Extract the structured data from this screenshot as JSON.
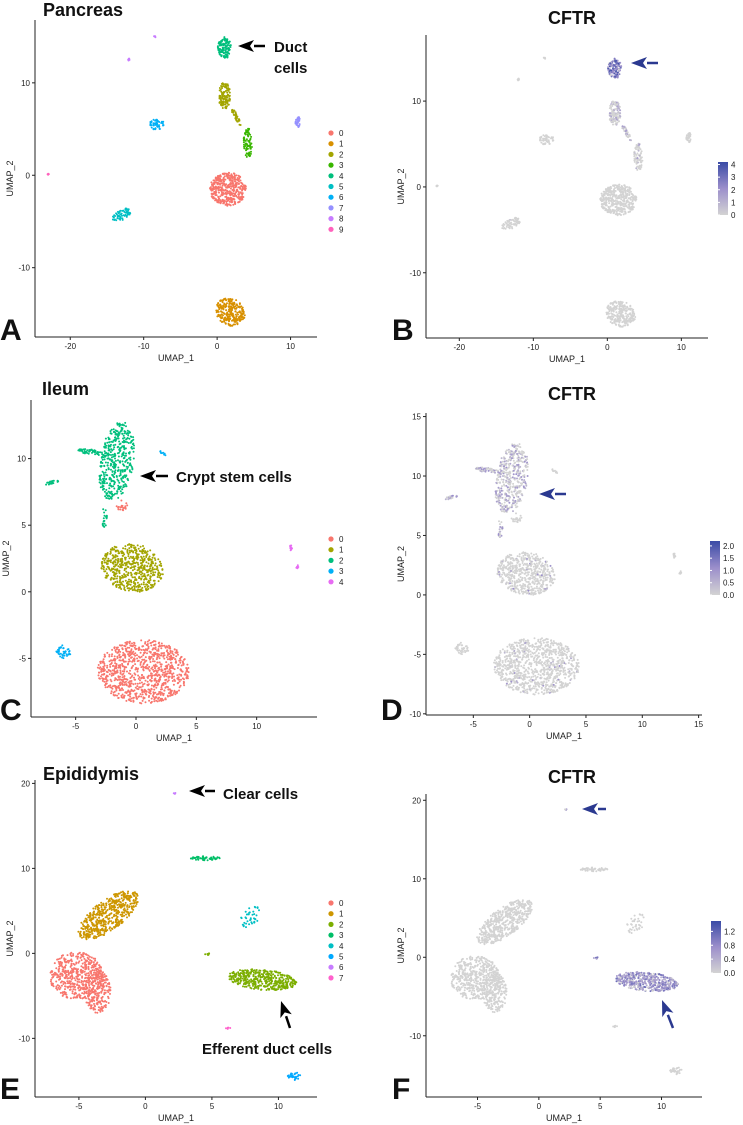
{
  "chart_data": [
    {
      "panel": "A",
      "type": "scatter",
      "title": "Pancreas",
      "xlabel": "UMAP_1",
      "ylabel": "UMAP_2",
      "xlim": [
        -24.8,
        13.6
      ],
      "ylim": [
        -17.5,
        16.8
      ],
      "xticks": [
        -20,
        -10,
        0,
        10
      ],
      "yticks": [
        -10,
        0,
        10
      ],
      "legend": {
        "type": "categorical",
        "placement": "right",
        "entries": [
          {
            "label": "0",
            "color": "#F8766D"
          },
          {
            "label": "1",
            "color": "#D89000"
          },
          {
            "label": "2",
            "color": "#A3A500"
          },
          {
            "label": "3",
            "color": "#39B600"
          },
          {
            "label": "4",
            "color": "#00BF7D"
          },
          {
            "label": "5",
            "color": "#00BFC4"
          },
          {
            "label": "6",
            "color": "#00B0F6"
          },
          {
            "label": "7",
            "color": "#9590FF"
          },
          {
            "label": "8",
            "color": "#C77CFF"
          },
          {
            "label": "9",
            "color": "#FF62BC"
          }
        ]
      },
      "clusters": [
        {
          "cluster": 0,
          "x": 1.5,
          "y": -1.5,
          "rx": 2.5,
          "ry": 1.8,
          "angle": 0,
          "n": 420
        },
        {
          "cluster": 1,
          "x": 1.8,
          "y": -14.8,
          "rx": 2.0,
          "ry": 1.5,
          "angle": -15,
          "n": 260
        },
        {
          "cluster": 2,
          "x": 1.0,
          "y": 8.6,
          "rx": 0.8,
          "ry": 1.5,
          "angle": 0,
          "n": 120
        },
        {
          "cluster": 2,
          "x": 2.6,
          "y": 6.3,
          "rx": 1.1,
          "ry": 0.25,
          "angle": -55,
          "n": 35
        },
        {
          "cluster": 3,
          "x": 4.2,
          "y": 3.5,
          "rx": 0.6,
          "ry": 1.6,
          "angle": 0,
          "n": 80
        },
        {
          "cluster": 4,
          "x": 1.0,
          "y": 13.8,
          "rx": 0.9,
          "ry": 1.2,
          "angle": 0,
          "n": 120
        },
        {
          "cluster": 5,
          "x": -13.0,
          "y": -4.3,
          "rx": 1.3,
          "ry": 0.6,
          "angle": 20,
          "n": 60
        },
        {
          "cluster": 6,
          "x": -8.2,
          "y": 5.5,
          "rx": 1.0,
          "ry": 0.6,
          "angle": 0,
          "n": 50
        },
        {
          "cluster": 7,
          "x": 11.0,
          "y": 5.8,
          "rx": 0.4,
          "ry": 0.6,
          "angle": 0,
          "n": 30
        },
        {
          "cluster": 8,
          "x": -12.0,
          "y": 12.5,
          "rx": 0.2,
          "ry": 0.15,
          "angle": 0,
          "n": 6
        },
        {
          "cluster": 8,
          "x": -8.5,
          "y": 15.0,
          "rx": 0.15,
          "ry": 0.1,
          "angle": 0,
          "n": 4
        },
        {
          "cluster": 9,
          "x": -23.0,
          "y": 0.0,
          "rx": 0.2,
          "ry": 0.2,
          "angle": 0,
          "n": 4
        }
      ],
      "annotation": {
        "lines": [
          "Duct",
          "cells"
        ],
        "arrow_color": "#000000"
      }
    },
    {
      "panel": "B",
      "type": "scatter",
      "title": "CFTR",
      "xlabel": "UMAP_1",
      "ylabel": "UMAP_2",
      "xlim": [
        -24.5,
        13.6
      ],
      "ylim": [
        -17.6,
        17.7
      ],
      "xticks": [
        -20,
        -10,
        0,
        10
      ],
      "yticks": [
        -10,
        0,
        10
      ],
      "legend": {
        "type": "colorbar",
        "placement": "right",
        "min": 0,
        "max": 4.2,
        "ticks": [
          "0",
          "1",
          "2",
          "3",
          "4"
        ],
        "tick_values": [
          0,
          1,
          2,
          3,
          4
        ],
        "low_color": "#D3D3D3",
        "mid_color": "#9C8FCB",
        "high_color": "#3A4BA6"
      },
      "source_panel": "A",
      "expression": {
        "4": {
          "frac": 0.95,
          "mean": 3.0
        },
        "2": {
          "frac": 0.35,
          "mean": 1.2
        },
        "3": {
          "frac": 0.1,
          "mean": 1.5
        },
        "5": {
          "frac": 0.02,
          "mean": 1.0
        }
      },
      "annotation": {
        "lines": [],
        "arrow_color": "#2B3990"
      }
    },
    {
      "panel": "C",
      "type": "scatter",
      "title": "Ileum",
      "xlabel": "UMAP_1",
      "ylabel": "UMAP_2",
      "xlim": [
        -8.7,
        15.0
      ],
      "ylim": [
        -9.4,
        14.4
      ],
      "xticks": [
        -5,
        0,
        5,
        10
      ],
      "yticks": [
        -5,
        0,
        5,
        10
      ],
      "legend": {
        "type": "categorical",
        "placement": "right",
        "entries": [
          {
            "label": "0",
            "color": "#F8766D"
          },
          {
            "label": "1",
            "color": "#A3A500"
          },
          {
            "label": "2",
            "color": "#00BF7D"
          },
          {
            "label": "3",
            "color": "#00B0F6"
          },
          {
            "label": "4",
            "color": "#E76BF3"
          }
        ]
      },
      "clusters": [
        {
          "cluster": 0,
          "x": 0.6,
          "y": -6.0,
          "rx": 3.8,
          "ry": 2.4,
          "angle": 0,
          "n": 950
        },
        {
          "cluster": 0,
          "x": -1.2,
          "y": 6.5,
          "rx": 0.5,
          "ry": 0.4,
          "angle": 0,
          "n": 20
        },
        {
          "cluster": 1,
          "x": -0.3,
          "y": 1.8,
          "rx": 2.6,
          "ry": 1.8,
          "angle": -8,
          "n": 560
        },
        {
          "cluster": 2,
          "x": -1.6,
          "y": 9.8,
          "rx": 1.4,
          "ry": 3.0,
          "angle": -10,
          "n": 420
        },
        {
          "cluster": 2,
          "x": -3.8,
          "y": 10.5,
          "rx": 1.0,
          "ry": 0.2,
          "angle": -8,
          "n": 50
        },
        {
          "cluster": 2,
          "x": -7.0,
          "y": 8.2,
          "rx": 0.6,
          "ry": 0.15,
          "angle": 10,
          "n": 18
        },
        {
          "cluster": 2,
          "x": -2.6,
          "y": 5.5,
          "rx": 0.2,
          "ry": 0.9,
          "angle": 0,
          "n": 20
        },
        {
          "cluster": 3,
          "x": -6.0,
          "y": -4.5,
          "rx": 0.6,
          "ry": 0.5,
          "angle": 0,
          "n": 40
        },
        {
          "cluster": 3,
          "x": 2.2,
          "y": 10.4,
          "rx": 0.3,
          "ry": 0.1,
          "angle": -30,
          "n": 8
        },
        {
          "cluster": 4,
          "x": 12.8,
          "y": 3.3,
          "rx": 0.15,
          "ry": 0.2,
          "angle": 0,
          "n": 8
        },
        {
          "cluster": 4,
          "x": 13.4,
          "y": 1.9,
          "rx": 0.15,
          "ry": 0.15,
          "angle": 0,
          "n": 8
        }
      ],
      "annotation": {
        "lines": [
          "Crypt stem cells"
        ],
        "arrow_color": "#000000"
      }
    },
    {
      "panel": "D",
      "type": "scatter",
      "title": "CFTR",
      "xlabel": "UMAP_1",
      "ylabel": "UMAP_2",
      "xlim": [
        -9.2,
        15.3
      ],
      "ylim": [
        -10.1,
        15.3
      ],
      "xticks": [
        -5,
        0,
        5,
        10,
        15
      ],
      "yticks": [
        -10,
        -5,
        0,
        5,
        10,
        15
      ],
      "legend": {
        "type": "colorbar",
        "placement": "right",
        "min": 0,
        "max": 2.2,
        "ticks": [
          "0.0",
          "0.5",
          "1.0",
          "1.5",
          "2.0"
        ],
        "tick_values": [
          0,
          0.5,
          1,
          1.5,
          2
        ],
        "low_color": "#D3D3D3",
        "mid_color": "#9C8FCB",
        "high_color": "#3A4BA6"
      },
      "source_panel": "C",
      "expression": {
        "2": {
          "frac": 0.45,
          "mean": 0.8
        },
        "0": {
          "frac": 0.05,
          "mean": 0.8
        },
        "1": {
          "frac": 0.03,
          "mean": 0.8
        }
      },
      "annotation": {
        "lines": [],
        "arrow_color": "#2B3990"
      }
    },
    {
      "panel": "E",
      "type": "scatter",
      "title": "Epididymis",
      "xlabel": "UMAP_1",
      "ylabel": "UMAP_2",
      "xlim": [
        -8.3,
        12.9
      ],
      "ylim": [
        -16.9,
        20.4
      ],
      "xticks": [
        -5,
        0,
        5,
        10
      ],
      "yticks": [
        -10,
        0,
        10,
        20
      ],
      "legend": {
        "type": "categorical",
        "placement": "right",
        "entries": [
          {
            "label": "0",
            "color": "#F8766D"
          },
          {
            "label": "1",
            "color": "#CD9600"
          },
          {
            "label": "2",
            "color": "#7CAE00"
          },
          {
            "label": "3",
            "color": "#00BE67"
          },
          {
            "label": "4",
            "color": "#00BFC4"
          },
          {
            "label": "5",
            "color": "#00A9FF"
          },
          {
            "label": "6",
            "color": "#C77CFF"
          },
          {
            "label": "7",
            "color": "#FF61CC"
          }
        ]
      },
      "clusters": [
        {
          "cluster": 0,
          "x": -5.2,
          "y": -2.6,
          "rx": 2.0,
          "ry": 2.8,
          "angle": 0,
          "n": 480
        },
        {
          "cluster": 0,
          "x": -3.6,
          "y": -4.5,
          "rx": 1.0,
          "ry": 2.5,
          "angle": 0,
          "n": 220
        },
        {
          "cluster": 1,
          "x": -2.8,
          "y": 4.5,
          "rx": 1.4,
          "ry": 3.4,
          "angle": -35,
          "n": 520
        },
        {
          "cluster": 2,
          "x": 8.8,
          "y": -3.1,
          "rx": 2.6,
          "ry": 1.2,
          "angle": -10,
          "n": 420
        },
        {
          "cluster": 2,
          "x": 4.7,
          "y": -0.1,
          "rx": 0.4,
          "ry": 0.1,
          "angle": 0,
          "n": 6
        },
        {
          "cluster": 3,
          "x": 4.5,
          "y": 11.2,
          "rx": 1.1,
          "ry": 0.25,
          "angle": 0,
          "n": 55
        },
        {
          "cluster": 4,
          "x": 7.9,
          "y": 4.3,
          "rx": 0.7,
          "ry": 1.3,
          "angle": -20,
          "n": 40
        },
        {
          "cluster": 5,
          "x": 11.2,
          "y": -14.5,
          "rx": 0.5,
          "ry": 0.5,
          "angle": 0,
          "n": 30
        },
        {
          "cluster": 6,
          "x": 2.2,
          "y": 18.8,
          "rx": 0.1,
          "ry": 0.1,
          "angle": 0,
          "n": 4
        },
        {
          "cluster": 7,
          "x": 6.2,
          "y": -8.8,
          "rx": 0.2,
          "ry": 0.1,
          "angle": 20,
          "n": 5
        }
      ],
      "annotation": {
        "lines": [
          "Clear cells",
          "Efferent duct cells"
        ],
        "arrow_color": "#000000"
      }
    },
    {
      "panel": "F",
      "type": "scatter",
      "title": "CFTR",
      "xlabel": "UMAP_1",
      "ylabel": "UMAP_2",
      "xlim": [
        -9.2,
        13.3
      ],
      "ylim": [
        -17.8,
        20.8
      ],
      "xticks": [
        -5,
        0,
        5,
        10
      ],
      "yticks": [
        -10,
        0,
        10,
        20
      ],
      "legend": {
        "type": "colorbar",
        "placement": "right",
        "min": 0,
        "max": 1.5,
        "ticks": [
          "0.0",
          "0.4",
          "0.8",
          "1.2"
        ],
        "tick_values": [
          0,
          0.4,
          0.8,
          1.2
        ],
        "low_color": "#D3D3D3",
        "mid_color": "#9C8FCB",
        "high_color": "#3A4BA6"
      },
      "source_panel": "E",
      "expression": {
        "2": {
          "frac": 0.9,
          "mean": 0.8
        },
        "6": {
          "frac": 0.5,
          "mean": 0.6
        }
      },
      "annotation": {
        "lines": [],
        "arrow_color": "#2B3990"
      }
    }
  ]
}
